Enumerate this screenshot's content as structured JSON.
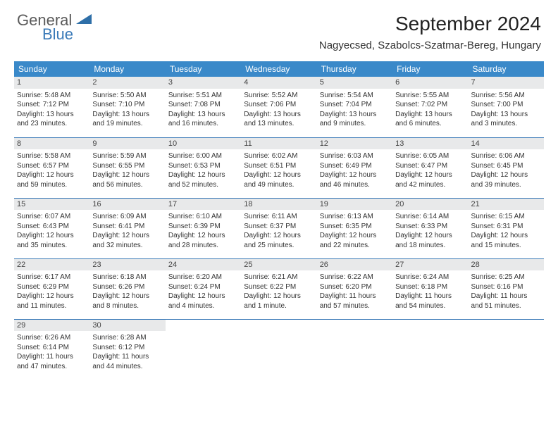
{
  "brand": {
    "name1": "General",
    "name2": "Blue",
    "accent": "#3a7ab8"
  },
  "title": "September 2024",
  "location": "Nagyecsed, Szabolcs-Szatmar-Bereg, Hungary",
  "weekdays": [
    "Sunday",
    "Monday",
    "Tuesday",
    "Wednesday",
    "Thursday",
    "Friday",
    "Saturday"
  ],
  "colors": {
    "header_bg": "#3a89c9",
    "row_divider": "#3a7ab8",
    "daynum_bg": "#e8e9ea"
  },
  "days": [
    {
      "n": "1",
      "sr": "Sunrise: 5:48 AM",
      "ss": "Sunset: 7:12 PM",
      "d1": "Daylight: 13 hours",
      "d2": "and 23 minutes."
    },
    {
      "n": "2",
      "sr": "Sunrise: 5:50 AM",
      "ss": "Sunset: 7:10 PM",
      "d1": "Daylight: 13 hours",
      "d2": "and 19 minutes."
    },
    {
      "n": "3",
      "sr": "Sunrise: 5:51 AM",
      "ss": "Sunset: 7:08 PM",
      "d1": "Daylight: 13 hours",
      "d2": "and 16 minutes."
    },
    {
      "n": "4",
      "sr": "Sunrise: 5:52 AM",
      "ss": "Sunset: 7:06 PM",
      "d1": "Daylight: 13 hours",
      "d2": "and 13 minutes."
    },
    {
      "n": "5",
      "sr": "Sunrise: 5:54 AM",
      "ss": "Sunset: 7:04 PM",
      "d1": "Daylight: 13 hours",
      "d2": "and 9 minutes."
    },
    {
      "n": "6",
      "sr": "Sunrise: 5:55 AM",
      "ss": "Sunset: 7:02 PM",
      "d1": "Daylight: 13 hours",
      "d2": "and 6 minutes."
    },
    {
      "n": "7",
      "sr": "Sunrise: 5:56 AM",
      "ss": "Sunset: 7:00 PM",
      "d1": "Daylight: 13 hours",
      "d2": "and 3 minutes."
    },
    {
      "n": "8",
      "sr": "Sunrise: 5:58 AM",
      "ss": "Sunset: 6:57 PM",
      "d1": "Daylight: 12 hours",
      "d2": "and 59 minutes."
    },
    {
      "n": "9",
      "sr": "Sunrise: 5:59 AM",
      "ss": "Sunset: 6:55 PM",
      "d1": "Daylight: 12 hours",
      "d2": "and 56 minutes."
    },
    {
      "n": "10",
      "sr": "Sunrise: 6:00 AM",
      "ss": "Sunset: 6:53 PM",
      "d1": "Daylight: 12 hours",
      "d2": "and 52 minutes."
    },
    {
      "n": "11",
      "sr": "Sunrise: 6:02 AM",
      "ss": "Sunset: 6:51 PM",
      "d1": "Daylight: 12 hours",
      "d2": "and 49 minutes."
    },
    {
      "n": "12",
      "sr": "Sunrise: 6:03 AM",
      "ss": "Sunset: 6:49 PM",
      "d1": "Daylight: 12 hours",
      "d2": "and 46 minutes."
    },
    {
      "n": "13",
      "sr": "Sunrise: 6:05 AM",
      "ss": "Sunset: 6:47 PM",
      "d1": "Daylight: 12 hours",
      "d2": "and 42 minutes."
    },
    {
      "n": "14",
      "sr": "Sunrise: 6:06 AM",
      "ss": "Sunset: 6:45 PM",
      "d1": "Daylight: 12 hours",
      "d2": "and 39 minutes."
    },
    {
      "n": "15",
      "sr": "Sunrise: 6:07 AM",
      "ss": "Sunset: 6:43 PM",
      "d1": "Daylight: 12 hours",
      "d2": "and 35 minutes."
    },
    {
      "n": "16",
      "sr": "Sunrise: 6:09 AM",
      "ss": "Sunset: 6:41 PM",
      "d1": "Daylight: 12 hours",
      "d2": "and 32 minutes."
    },
    {
      "n": "17",
      "sr": "Sunrise: 6:10 AM",
      "ss": "Sunset: 6:39 PM",
      "d1": "Daylight: 12 hours",
      "d2": "and 28 minutes."
    },
    {
      "n": "18",
      "sr": "Sunrise: 6:11 AM",
      "ss": "Sunset: 6:37 PM",
      "d1": "Daylight: 12 hours",
      "d2": "and 25 minutes."
    },
    {
      "n": "19",
      "sr": "Sunrise: 6:13 AM",
      "ss": "Sunset: 6:35 PM",
      "d1": "Daylight: 12 hours",
      "d2": "and 22 minutes."
    },
    {
      "n": "20",
      "sr": "Sunrise: 6:14 AM",
      "ss": "Sunset: 6:33 PM",
      "d1": "Daylight: 12 hours",
      "d2": "and 18 minutes."
    },
    {
      "n": "21",
      "sr": "Sunrise: 6:15 AM",
      "ss": "Sunset: 6:31 PM",
      "d1": "Daylight: 12 hours",
      "d2": "and 15 minutes."
    },
    {
      "n": "22",
      "sr": "Sunrise: 6:17 AM",
      "ss": "Sunset: 6:29 PM",
      "d1": "Daylight: 12 hours",
      "d2": "and 11 minutes."
    },
    {
      "n": "23",
      "sr": "Sunrise: 6:18 AM",
      "ss": "Sunset: 6:26 PM",
      "d1": "Daylight: 12 hours",
      "d2": "and 8 minutes."
    },
    {
      "n": "24",
      "sr": "Sunrise: 6:20 AM",
      "ss": "Sunset: 6:24 PM",
      "d1": "Daylight: 12 hours",
      "d2": "and 4 minutes."
    },
    {
      "n": "25",
      "sr": "Sunrise: 6:21 AM",
      "ss": "Sunset: 6:22 PM",
      "d1": "Daylight: 12 hours",
      "d2": "and 1 minute."
    },
    {
      "n": "26",
      "sr": "Sunrise: 6:22 AM",
      "ss": "Sunset: 6:20 PM",
      "d1": "Daylight: 11 hours",
      "d2": "and 57 minutes."
    },
    {
      "n": "27",
      "sr": "Sunrise: 6:24 AM",
      "ss": "Sunset: 6:18 PM",
      "d1": "Daylight: 11 hours",
      "d2": "and 54 minutes."
    },
    {
      "n": "28",
      "sr": "Sunrise: 6:25 AM",
      "ss": "Sunset: 6:16 PM",
      "d1": "Daylight: 11 hours",
      "d2": "and 51 minutes."
    },
    {
      "n": "29",
      "sr": "Sunrise: 6:26 AM",
      "ss": "Sunset: 6:14 PM",
      "d1": "Daylight: 11 hours",
      "d2": "and 47 minutes."
    },
    {
      "n": "30",
      "sr": "Sunrise: 6:28 AM",
      "ss": "Sunset: 6:12 PM",
      "d1": "Daylight: 11 hours",
      "d2": "and 44 minutes."
    }
  ]
}
